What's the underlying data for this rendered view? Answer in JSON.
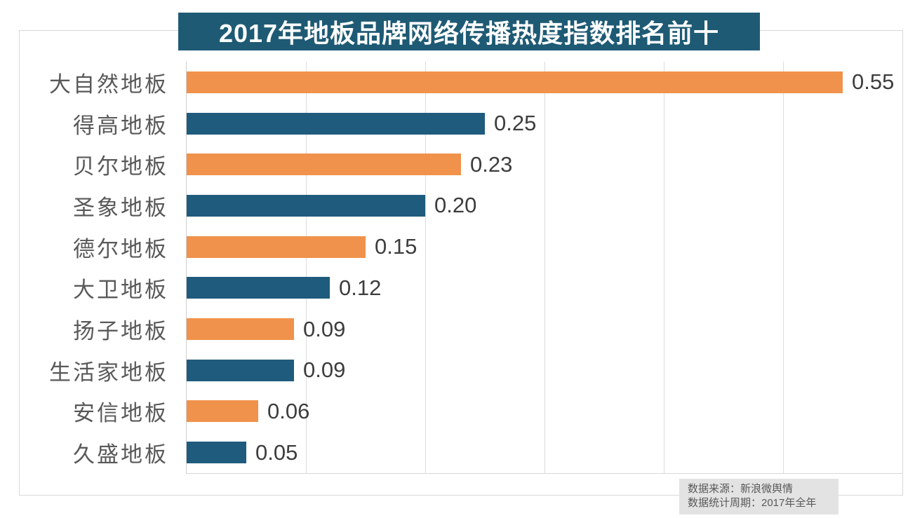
{
  "chart_data": {
    "type": "bar",
    "orientation": "horizontal",
    "title": "2017年地板品牌网络传播热度指数排名前十",
    "categories": [
      "大自然地板",
      "得高地板",
      "贝尔地板",
      "圣象地板",
      "德尔地板",
      "大卫地板",
      "扬子地板",
      "生活家地板",
      "安信地板",
      "久盛地板"
    ],
    "values": [
      0.55,
      0.25,
      0.23,
      0.2,
      0.15,
      0.12,
      0.09,
      0.09,
      0.06,
      0.05
    ],
    "value_labels": [
      "0.55",
      "0.25",
      "0.23",
      "0.20",
      "0.15",
      "0.12",
      "0.09",
      "0.09",
      "0.06",
      "0.05"
    ],
    "xlim": [
      0,
      0.6
    ],
    "gridline_interval": 0.1,
    "grid": true,
    "legend": "none",
    "bar_colors_alternating": [
      "#F0924B",
      "#1F5B7D"
    ],
    "source_note": {
      "line1": "数据来源：新浪微舆情",
      "line2": "数据统计周期：2017年全年"
    }
  },
  "colors": {
    "banner_background": "#1E5A74",
    "title_text": "#FFFFFF",
    "bar_orange": "#F0924B",
    "bar_blue": "#1F5B7D",
    "category_label": "#595959",
    "value_label": "#3D3D3D",
    "gridline": "#DCDCDC",
    "border": "#D9D9D9",
    "source_background": "#E3E3E3"
  }
}
